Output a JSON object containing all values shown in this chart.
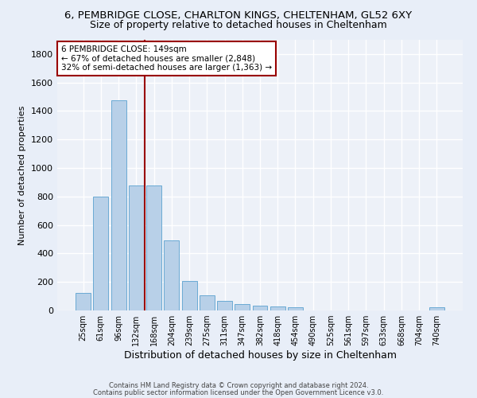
{
  "title1": "6, PEMBRIDGE CLOSE, CHARLTON KINGS, CHELTENHAM, GL52 6XY",
  "title2": "Size of property relative to detached houses in Cheltenham",
  "xlabel": "Distribution of detached houses by size in Cheltenham",
  "ylabel": "Number of detached properties",
  "categories": [
    "25sqm",
    "61sqm",
    "96sqm",
    "132sqm",
    "168sqm",
    "204sqm",
    "239sqm",
    "275sqm",
    "311sqm",
    "347sqm",
    "382sqm",
    "418sqm",
    "454sqm",
    "490sqm",
    "525sqm",
    "561sqm",
    "597sqm",
    "633sqm",
    "668sqm",
    "704sqm",
    "740sqm"
  ],
  "values": [
    125,
    800,
    1475,
    880,
    880,
    490,
    205,
    105,
    65,
    45,
    35,
    30,
    20,
    0,
    0,
    0,
    0,
    0,
    0,
    0,
    20
  ],
  "bar_color": "#b8d0e8",
  "bar_edge_color": "#6aaad4",
  "vline_color": "#990000",
  "vline_pos": 3.5,
  "annotation_text": "6 PEMBRIDGE CLOSE: 149sqm\n← 67% of detached houses are smaller (2,848)\n32% of semi-detached houses are larger (1,363) →",
  "annotation_box_color": "#ffffff",
  "annotation_box_edge": "#990000",
  "ylim": [
    0,
    1900
  ],
  "yticks": [
    0,
    200,
    400,
    600,
    800,
    1000,
    1200,
    1400,
    1600,
    1800
  ],
  "footer1": "Contains HM Land Registry data © Crown copyright and database right 2024.",
  "footer2": "Contains public sector information licensed under the Open Government Licence v3.0.",
  "bg_color": "#e8eef8",
  "plot_bg_color": "#edf1f8",
  "grid_color": "#ffffff",
  "title1_fontsize": 9.5,
  "title2_fontsize": 9,
  "ylabel_fontsize": 8,
  "xlabel_fontsize": 9,
  "annot_fontsize": 7.5,
  "xtick_fontsize": 7,
  "ytick_fontsize": 8,
  "footer_fontsize": 6
}
